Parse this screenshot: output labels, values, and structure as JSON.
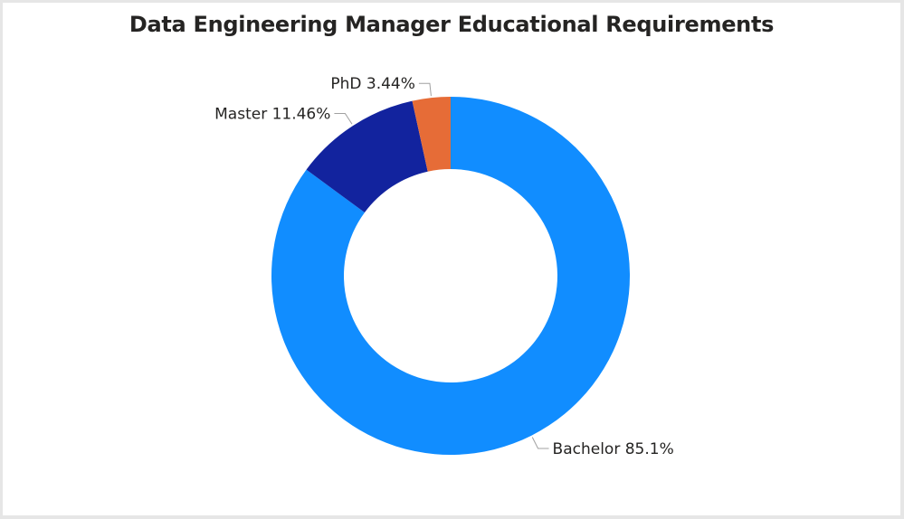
{
  "chart_data": {
    "type": "pie",
    "variant": "donut",
    "title": "Data Engineering Manager Educational Requirements",
    "slices": [
      {
        "label": "Bachelor",
        "value": 85.1,
        "display": "85.1%",
        "color": "#118DFF"
      },
      {
        "label": "Master",
        "value": 11.46,
        "display": "11.46%",
        "color": "#12239E"
      },
      {
        "label": "PhD",
        "value": 3.44,
        "display": "3.44%",
        "color": "#E66C37"
      }
    ],
    "legend": "none"
  }
}
